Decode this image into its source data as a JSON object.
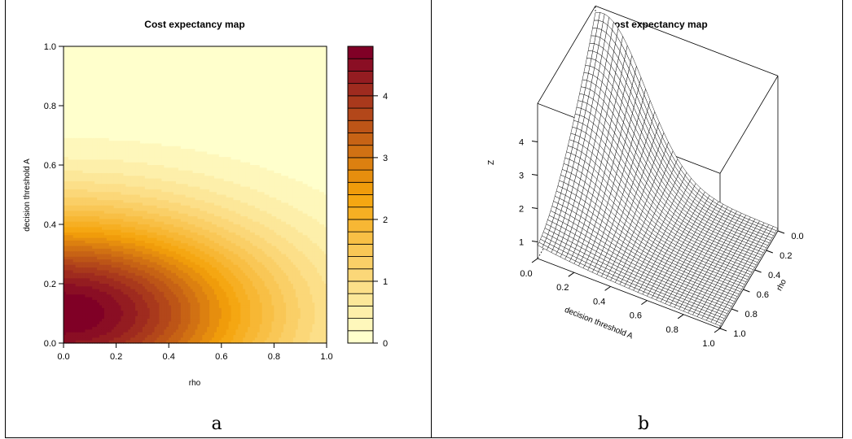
{
  "panel_a": {
    "caption": "a",
    "chart_data": {
      "type": "heatmap",
      "title": "Cost expectancy map",
      "xlabel": "rho",
      "ylabel": "decision threshold A",
      "xlim": [
        0,
        1
      ],
      "ylim": [
        0,
        1
      ],
      "x_ticks": [
        "0.0",
        "0.2",
        "0.4",
        "0.6",
        "0.8",
        "1.0"
      ],
      "y_ticks": [
        "0.0",
        "0.2",
        "0.4",
        "0.6",
        "0.8",
        "1.0"
      ],
      "colorbar_ticks": [
        "0",
        "1",
        "2",
        "3",
        "4"
      ],
      "z_range": [
        0,
        4.8
      ],
      "levels": 24,
      "color_low": "#ffffcc",
      "color_mid": "#f5a30a",
      "color_high": "#800026",
      "grid": false
    }
  },
  "panel_b": {
    "caption": "b",
    "chart_data": {
      "type": "surface",
      "title": "Cost expectancy map",
      "xlabel": "decision threshold A",
      "ylabel": "rho",
      "zlabel": "Z",
      "x_ticks": [
        "0.0",
        "0.2",
        "0.4",
        "0.6",
        "0.8",
        "1.0"
      ],
      "y_ticks": [
        "0.0",
        "0.2",
        "0.4",
        "0.6",
        "0.8",
        "1.0"
      ],
      "z_ticks": [
        "1",
        "2",
        "3",
        "4"
      ],
      "z_range": [
        0.5,
        4.8
      ],
      "grid_size": 40
    }
  }
}
